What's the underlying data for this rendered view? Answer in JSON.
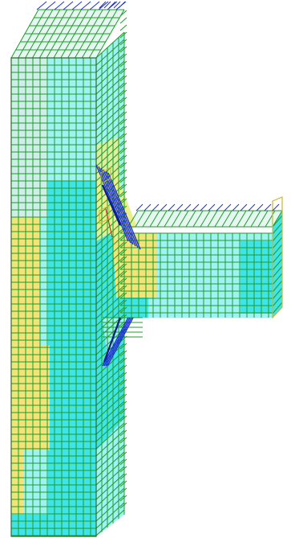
{
  "colors": {
    "background": "#ffffff",
    "mesh_line": "#1f9c2a",
    "rebar_blue": "#1a2fd6",
    "edge_dark": "#3c4a2a",
    "tip_yellow": "#c9b733",
    "fill_cyan": "#3fe4e9",
    "fill_yellow": "#f3e47a",
    "fill_light_cyan": "#9ff2f4",
    "fill_pale": "#cfeee9"
  }
}
